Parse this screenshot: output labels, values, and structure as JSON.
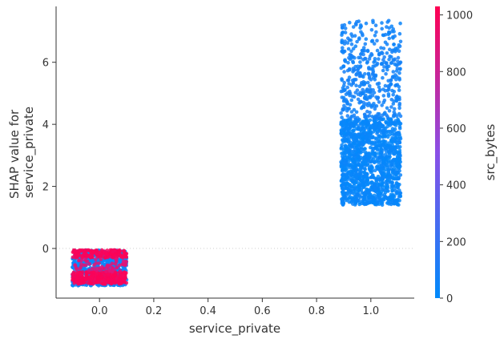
{
  "chart_data": {
    "type": "scatter",
    "title": "",
    "xlabel": "service_private",
    "ylabel_lines": [
      "SHAP value for",
      "service_private"
    ],
    "xlim": [
      -0.16,
      1.16
    ],
    "ylim": [
      -1.6,
      7.8
    ],
    "xticks": [
      0.0,
      0.2,
      0.4,
      0.6,
      0.8,
      1.0
    ],
    "xtick_labels": [
      "0.0",
      "0.2",
      "0.4",
      "0.6",
      "0.8",
      "1.0"
    ],
    "yticks": [
      0,
      2,
      4,
      6
    ],
    "ytick_labels": [
      "0",
      "2",
      "4",
      "6"
    ],
    "zero_reference_line": true,
    "colorbar": {
      "label": "src_bytes",
      "range": [
        0,
        1030
      ],
      "ticks": [
        0,
        200,
        400,
        600,
        800,
        1000
      ],
      "tick_labels": [
        "0",
        "200",
        "400",
        "600",
        "800",
        "1000"
      ],
      "low_color": "#008afb",
      "high_color": "#ff0052"
    },
    "clusters": [
      {
        "name": "service_private = 0",
        "x_center": 0.0,
        "x_jitter": 0.1,
        "points": 1200,
        "bands": [
          {
            "y_range": [
              -1.2,
              -0.05
            ],
            "share": 0.55,
            "color_value": 40
          },
          {
            "y_range": [
              -0.3,
              -0.05
            ],
            "share": 0.15,
            "color_value": 1000
          },
          {
            "y_range": [
              -1.0,
              -0.75
            ],
            "share": 0.15,
            "color_value": 1000
          },
          {
            "y_range": [
              -1.15,
              -0.95
            ],
            "share": 0.1,
            "color_value": 1000
          },
          {
            "y_range": [
              -0.75,
              -0.35
            ],
            "share": 0.05,
            "color_value": 900
          }
        ]
      },
      {
        "name": "service_private = 1",
        "x_center": 1.0,
        "x_jitter": 0.11,
        "points": 1800,
        "bands": [
          {
            "y_range": [
              1.4,
              4.2
            ],
            "share": 0.75,
            "color_value": 30
          },
          {
            "y_range": [
              4.2,
              6.4
            ],
            "share": 0.2,
            "color_value": 70
          },
          {
            "y_range": [
              6.4,
              7.35
            ],
            "share": 0.05,
            "color_value": 60
          }
        ]
      }
    ]
  }
}
